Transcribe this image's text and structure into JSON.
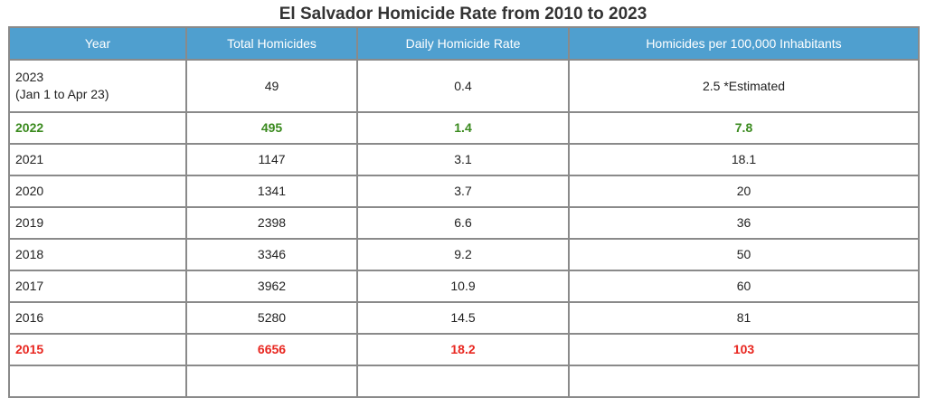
{
  "title": "El Salvador Homicide Rate from 2010 to 2023",
  "colors": {
    "header_bg": "#4f9fcf",
    "highlight_green": "#3a8a1e",
    "highlight_red": "#e8261f"
  },
  "columns": [
    "Year",
    "Total Homicides",
    "Daily Homicide Rate",
    "Homicides per 100,000 Inhabitants"
  ],
  "rows": [
    {
      "year": "2023",
      "year_note": "(Jan 1 to Apr 23)",
      "total": "49",
      "daily": "0.4",
      "per100k": "2.5 *Estimated"
    },
    {
      "year": "2022",
      "total": "495",
      "daily": "1.4",
      "per100k": "7.8"
    },
    {
      "year": "2021",
      "total": "1147",
      "daily": "3.1",
      "per100k": "18.1"
    },
    {
      "year": "2020",
      "total": "1341",
      "daily": "3.7",
      "per100k": "20"
    },
    {
      "year": "2019",
      "total": "2398",
      "daily": "6.6",
      "per100k": "36"
    },
    {
      "year": "2018",
      "total": "3346",
      "daily": "9.2",
      "per100k": "50"
    },
    {
      "year": "2017",
      "total": "3962",
      "daily": "10.9",
      "per100k": "60"
    },
    {
      "year": "2016",
      "total": "5280",
      "daily": "14.5",
      "per100k": "81"
    },
    {
      "year": "2015",
      "total": "6656",
      "daily": "18.2",
      "per100k": "103"
    }
  ]
}
